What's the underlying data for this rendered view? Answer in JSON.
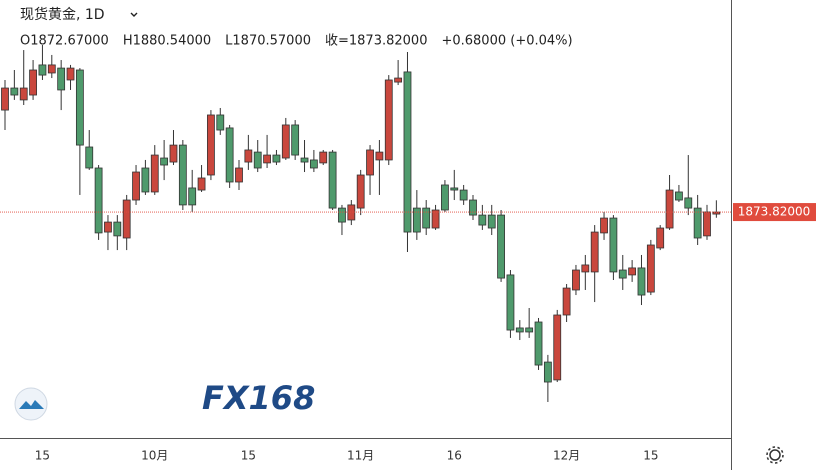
{
  "chart_data": {
    "type": "candlestick",
    "title": "现货黄金, 1D",
    "info": [
      "O1872.67000",
      "H1880.54000",
      "L1870.57000",
      "收=1873.82000",
      "+0.68000 (+0.04%)"
    ],
    "watermark": "FX168",
    "categories": [
      null,
      null,
      null,
      null,
      "15",
      null,
      null,
      null,
      null,
      null,
      null,
      null,
      null,
      null,
      null,
      null,
      "10月",
      null,
      null,
      null,
      null,
      null,
      null,
      null,
      null,
      null,
      "15",
      null,
      null,
      null,
      null,
      null,
      null,
      null,
      null,
      null,
      null,
      null,
      "11月",
      null,
      null,
      null,
      null,
      null,
      null,
      null,
      null,
      null,
      "16",
      null,
      null,
      null,
      null,
      null,
      null,
      null,
      null,
      null,
      null,
      null,
      "12月",
      null,
      null,
      null,
      null,
      null,
      null,
      null,
      null,
      "15",
      null,
      null,
      null,
      null,
      null,
      null,
      null
    ],
    "open": [
      1932.1,
      1944.7,
      1937.9,
      1940.7,
      1957.9,
      1953.3,
      1956.1,
      1949.3,
      1955.0,
      1911.0,
      1899.0,
      1862.4,
      1868.1,
      1859.0,
      1880.7,
      1899.0,
      1885.3,
      1904.7,
      1902.4,
      1912.1,
      1887.6,
      1886.4,
      1895.0,
      1929.3,
      1921.9,
      1891.0,
      1902.4,
      1908.1,
      1901.9,
      1906.4,
      1904.7,
      1923.6,
      1904.7,
      1903.6,
      1901.9,
      1908.1,
      1876.1,
      1869.3,
      1876.1,
      1895.0,
      1903.6,
      1903.6,
      1948.1,
      1953.9,
      1876.1,
      1876.1,
      1864.7,
      1889.3,
      1887.6,
      1886.4,
      1880.7,
      1872.1,
      1872.1,
      1872.1,
      1837.9,
      1807.6,
      1807.6,
      1811.0,
      1788.1,
      1777.9,
      1815.0,
      1829.3,
      1839.6,
      1839.6,
      1861.9,
      1870.4,
      1840.7,
      1837.9,
      1841.9,
      1828.1,
      1853.3,
      1864.7,
      1885.3,
      1881.9,
      1876.1,
      1860.2,
      1872.67
    ],
    "high": [
      1949.3,
      1955.0,
      1966.4,
      1960.7,
      1969.3,
      1963.6,
      1960.7,
      1957.9,
      1956.1,
      1920.7,
      1900.7,
      1872.1,
      1872.1,
      1883.6,
      1900.7,
      1903.6,
      1912.1,
      1915.0,
      1920.7,
      1915.0,
      1897.9,
      1900.7,
      1932.1,
      1933.3,
      1923.6,
      1903.6,
      1917.9,
      1915.0,
      1917.9,
      1909.3,
      1927.6,
      1926.4,
      1915.0,
      1909.3,
      1909.3,
      1909.3,
      1877.9,
      1880.7,
      1897.9,
      1912.1,
      1915.0,
      1952.1,
      1960.7,
      1965.3,
      1886.4,
      1880.7,
      1877.9,
      1892.1,
      1897.9,
      1889.3,
      1883.6,
      1877.9,
      1877.9,
      1875.0,
      1840.7,
      1812.1,
      1819.0,
      1813.3,
      1792.2,
      1817.9,
      1832.7,
      1843.6,
      1849.3,
      1866.4,
      1873.9,
      1872.1,
      1849.3,
      1846.4,
      1849.3,
      1857.9,
      1866.4,
      1895.0,
      1889.3,
      1906.4,
      1883.6,
      1877.9,
      1880.54
    ],
    "low": [
      1920.7,
      1937.9,
      1935.0,
      1937.9,
      1949.3,
      1950.4,
      1932.1,
      1943.6,
      1883.6,
      1897.9,
      1857.9,
      1852.1,
      1852.1,
      1852.1,
      1877.9,
      1883.6,
      1883.6,
      1892.1,
      1900.7,
      1875.0,
      1873.9,
      1885.3,
      1892.1,
      1917.9,
      1887.6,
      1886.4,
      1897.9,
      1896.7,
      1899.0,
      1900.7,
      1903.6,
      1903.6,
      1896.7,
      1896.7,
      1900.7,
      1875.0,
      1860.7,
      1866.4,
      1872.1,
      1883.6,
      1883.6,
      1900.7,
      1946.4,
      1851.0,
      1857.9,
      1860.7,
      1863.6,
      1873.9,
      1880.7,
      1877.9,
      1869.3,
      1863.6,
      1860.7,
      1833.9,
      1801.9,
      1800.7,
      1801.9,
      1783.6,
      1765.3,
      1776.7,
      1811.0,
      1826.4,
      1829.3,
      1822.4,
      1857.9,
      1835.0,
      1829.3,
      1833.9,
      1820.7,
      1826.4,
      1852.1,
      1863.6,
      1879.6,
      1872.1,
      1855.0,
      1857.9,
      1870.57
    ],
    "close": [
      1944.7,
      1940.7,
      1944.7,
      1955.0,
      1952.1,
      1957.9,
      1943.6,
      1956.1,
      1912.1,
      1899.0,
      1861.9,
      1868.1,
      1860.2,
      1880.7,
      1896.7,
      1885.3,
      1906.4,
      1900.7,
      1912.1,
      1877.9,
      1877.9,
      1893.3,
      1929.3,
      1920.7,
      1891.0,
      1899.0,
      1909.3,
      1899.0,
      1906.4,
      1902.4,
      1923.6,
      1906.4,
      1902.4,
      1899.0,
      1908.1,
      1876.1,
      1868.1,
      1877.9,
      1895.0,
      1909.3,
      1908.1,
      1949.3,
      1950.4,
      1862.4,
      1862.4,
      1864.7,
      1875.0,
      1875.0,
      1886.4,
      1880.7,
      1872.1,
      1866.4,
      1864.7,
      1836.1,
      1806.4,
      1805.3,
      1805.3,
      1786.4,
      1776.7,
      1815.0,
      1830.4,
      1840.7,
      1843.6,
      1862.4,
      1870.4,
      1839.6,
      1836.1,
      1841.9,
      1826.4,
      1855.0,
      1864.7,
      1886.4,
      1880.7,
      1876.1,
      1859.0,
      1873.9,
      1873.82
    ],
    "up_color": "#c9473d",
    "down_color": "#4f9a6c",
    "line_color": "#333333",
    "last_price": 1873.82,
    "last_price_label": "1873.82000",
    "last_price_color": "#e04b3d",
    "ylim": [
      1745,
      1995
    ]
  }
}
